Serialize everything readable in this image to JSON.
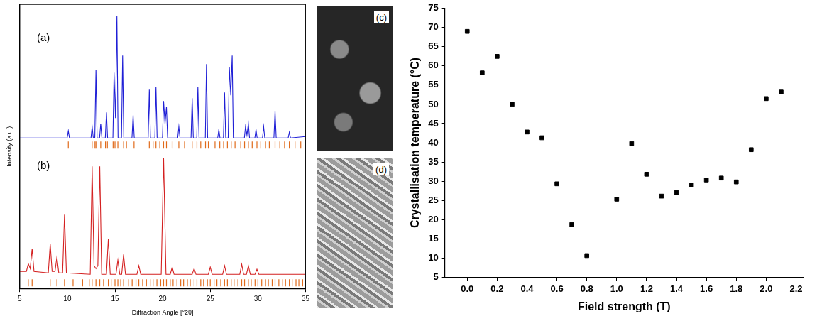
{
  "chart_data": [
    {
      "type": "line",
      "x_label": "Diffraction Angle [°2θ]",
      "y_label": "Intensity (a.u.)",
      "xlim": [
        5,
        35
      ],
      "xticks": [
        5,
        10,
        15,
        20,
        25,
        30,
        35
      ],
      "ylim": [
        0,
        1
      ],
      "tick_labels": "x",
      "grid": false,
      "annotations": [
        {
          "text": "(a)",
          "x": 6.8,
          "y": 0.88
        },
        {
          "text": "(b)",
          "x": 6.8,
          "y": 0.43
        }
      ],
      "series": [
        {
          "type": "line",
          "color": "#1f1fd6",
          "x": [
            5,
            9.98,
            10.1,
            10.22,
            12.48,
            12.6,
            12.72,
            12.88,
            13.0,
            13.12,
            13.38,
            13.5,
            13.62,
            13.98,
            14.1,
            14.22,
            14.78,
            14.9,
            15.05,
            15.2,
            15.32,
            15.68,
            15.8,
            15.92,
            16.78,
            16.9,
            17.02,
            18.48,
            18.6,
            18.72,
            19.18,
            19.3,
            19.42,
            19.98,
            20.1,
            20.25,
            20.4,
            20.52,
            21.58,
            21.7,
            21.82,
            22.98,
            23.1,
            23.22,
            23.58,
            23.7,
            23.82,
            24.48,
            24.6,
            24.72,
            25.78,
            25.9,
            26.02,
            26.38,
            26.5,
            26.62,
            26.88,
            27.0,
            27.15,
            27.3,
            27.42,
            28.58,
            28.7,
            28.85,
            29.0,
            29.12,
            29.68,
            29.8,
            29.92,
            30.48,
            30.6,
            30.72,
            31.68,
            31.8,
            31.92,
            33.18,
            33.3,
            33.42,
            35
          ],
          "values": [
            0.53,
            0.53,
            0.555,
            0.53,
            0.53,
            0.57,
            0.53,
            0.53,
            0.77,
            0.53,
            0.53,
            0.58,
            0.53,
            0.53,
            0.62,
            0.53,
            0.53,
            0.76,
            0.6,
            0.96,
            0.53,
            0.53,
            0.82,
            0.53,
            0.53,
            0.61,
            0.53,
            0.53,
            0.7,
            0.53,
            0.53,
            0.71,
            0.53,
            0.53,
            0.66,
            0.58,
            0.64,
            0.53,
            0.53,
            0.57,
            0.53,
            0.53,
            0.67,
            0.53,
            0.53,
            0.71,
            0.53,
            0.53,
            0.79,
            0.53,
            0.53,
            0.56,
            0.53,
            0.53,
            0.69,
            0.53,
            0.53,
            0.78,
            0.68,
            0.82,
            0.53,
            0.53,
            0.57,
            0.54,
            0.58,
            0.53,
            0.53,
            0.56,
            0.53,
            0.53,
            0.57,
            0.53,
            0.53,
            0.625,
            0.53,
            0.53,
            0.55,
            0.53,
            0.535
          ]
        },
        {
          "type": "scatter",
          "marker": "tick",
          "color": "#e06a1a",
          "y": 0.505,
          "x": [
            10.1,
            12.6,
            12.9,
            13.0,
            13.5,
            14.0,
            14.2,
            14.8,
            15.0,
            15.3,
            15.9,
            16.2,
            17.0,
            18.6,
            19.0,
            19.3,
            19.7,
            20.1,
            20.4,
            21.0,
            21.7,
            22.3,
            23.1,
            23.6,
            24.0,
            24.5,
            24.8,
            25.5,
            26.0,
            26.4,
            26.8,
            27.2,
            27.6,
            28.2,
            28.6,
            29.0,
            29.4,
            29.9,
            30.3,
            30.8,
            31.2,
            31.8,
            32.3,
            32.8,
            33.3,
            33.9,
            34.5
          ]
        },
        {
          "type": "line",
          "color": "#d42020",
          "x": [
            5,
            5.7,
            5.9,
            6.1,
            6.3,
            6.5,
            8.0,
            8.2,
            8.4,
            8.7,
            8.9,
            9.1,
            9.5,
            9.7,
            9.9,
            12.4,
            12.6,
            12.8,
            13.0,
            13.2,
            13.4,
            13.6,
            14.1,
            14.3,
            14.5,
            15.1,
            15.3,
            15.5,
            15.7,
            15.9,
            16.1,
            17.3,
            17.5,
            17.7,
            19.85,
            20.1,
            20.35,
            20.8,
            21.0,
            21.2,
            23.1,
            23.3,
            23.5,
            24.8,
            25.0,
            25.2,
            26.3,
            26.5,
            26.7,
            28.1,
            28.3,
            28.5,
            28.8,
            29.0,
            29.2,
            29.7,
            29.9,
            30.1,
            35
          ],
          "values": [
            0.06,
            0.06,
            0.087,
            0.07,
            0.14,
            0.06,
            0.055,
            0.157,
            0.06,
            0.06,
            0.11,
            0.055,
            0.055,
            0.26,
            0.055,
            0.05,
            0.43,
            0.08,
            0.07,
            0.08,
            0.43,
            0.05,
            0.05,
            0.175,
            0.05,
            0.05,
            0.1,
            0.05,
            0.05,
            0.12,
            0.05,
            0.05,
            0.08,
            0.05,
            0.05,
            0.46,
            0.05,
            0.05,
            0.075,
            0.05,
            0.05,
            0.07,
            0.05,
            0.05,
            0.075,
            0.05,
            0.05,
            0.08,
            0.05,
            0.05,
            0.085,
            0.05,
            0.05,
            0.08,
            0.05,
            0.05,
            0.068,
            0.05,
            0.05
          ]
        },
        {
          "type": "scatter",
          "marker": "tick",
          "color": "#e06a1a",
          "y": 0.02,
          "x": [
            5.9,
            6.3,
            8.2,
            8.9,
            9.7,
            10.6,
            11.6,
            12.3,
            12.6,
            13.0,
            13.4,
            13.8,
            14.3,
            14.6,
            15.0,
            15.3,
            15.6,
            15.9,
            16.4,
            16.8,
            17.2,
            17.5,
            17.9,
            18.3,
            18.7,
            19.0,
            19.4,
            19.8,
            20.1,
            20.4,
            20.8,
            21.1,
            21.5,
            21.9,
            22.2,
            22.6,
            22.9,
            23.3,
            23.6,
            24.0,
            24.3,
            24.7,
            25.0,
            25.4,
            25.7,
            26.1,
            26.5,
            26.8,
            27.2,
            27.5,
            27.9,
            28.3,
            28.6,
            29.0,
            29.3,
            29.7,
            30.0,
            30.4,
            30.8,
            31.1,
            31.5,
            31.8,
            32.2,
            32.6,
            32.9,
            33.3,
            33.6,
            34.0,
            34.3,
            34.7
          ]
        }
      ]
    },
    {
      "type": "scatter",
      "x_label": "Field strength (T)",
      "y_label": "Crystallisation temperature (°C)",
      "xlim": [
        -0.15,
        2.25
      ],
      "xticks": [
        {
          "value": 0,
          "label": "0.0"
        },
        {
          "value": 0.2,
          "label": "0.2"
        },
        {
          "value": 0.4,
          "label": "0.4"
        },
        {
          "value": 0.6,
          "label": "0.6"
        },
        {
          "value": 0.8,
          "label": "0.8"
        },
        {
          "value": 1.0,
          "label": "1.0"
        },
        {
          "value": 1.2,
          "label": "1.2"
        },
        {
          "value": 1.4,
          "label": "1.4"
        },
        {
          "value": 1.6,
          "label": "1.6"
        },
        {
          "value": 1.8,
          "label": "1.8"
        },
        {
          "value": 2.0,
          "label": "2.0"
        },
        {
          "value": 2.2,
          "label": "2.2"
        }
      ],
      "ylim": [
        5,
        75
      ],
      "yticks": [
        5,
        10,
        15,
        20,
        25,
        30,
        35,
        40,
        45,
        50,
        55,
        60,
        65,
        70,
        75
      ],
      "grid": false,
      "marker": "square",
      "color": "#000000",
      "x": [
        0.0,
        0.1,
        0.2,
        0.3,
        0.4,
        0.5,
        0.6,
        0.7,
        0.8,
        1.0,
        1.1,
        1.2,
        1.3,
        1.4,
        1.5,
        1.6,
        1.7,
        1.8,
        1.9,
        2.0,
        2.1
      ],
      "values": [
        69,
        58.2,
        62.5,
        50,
        42.8,
        41.3,
        29.3,
        18.7,
        10.6,
        25.3,
        39.8,
        31.8,
        26.1,
        27,
        29,
        30.3,
        30.8,
        29.8,
        38.2,
        51.5,
        53.2
      ]
    }
  ],
  "photos": [
    {
      "label": "(c)"
    },
    {
      "label": "(d)"
    }
  ]
}
